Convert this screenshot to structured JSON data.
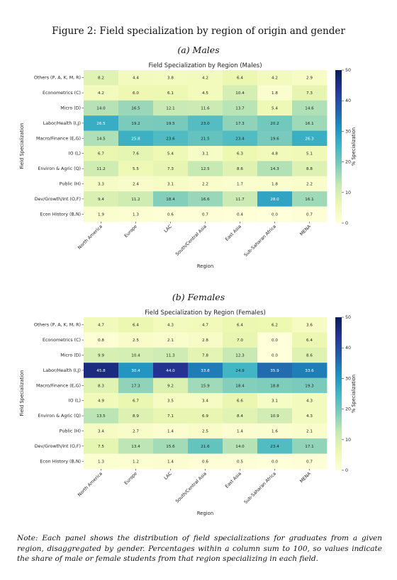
{
  "figure": {
    "title": "Figure 2: Field specialization by region of origin and gender",
    "note": "Note: Each panel shows the distribution of field specializations for graduates from a given region, disaggregated by gender. Percentages within a column sum to 100, so values indicate the share of male or female students from that region specializing in each field."
  },
  "panels": [
    {
      "label": "(a) Males"
    },
    {
      "label": "(b) Females"
    }
  ],
  "chart_data": [
    {
      "type": "heatmap",
      "title": "Field Specialization by Region (Males)",
      "xlabel": "Region",
      "ylabel": "Field Specialization",
      "colorbar_label": "% Specialization",
      "colorbar_ticks": [
        0,
        10,
        20,
        30,
        40,
        50
      ],
      "vmin": 0,
      "vmax": 50,
      "colormap": "YlGnBu",
      "categories": [
        "North America",
        "Europe",
        "LAC",
        "South/Central Asia",
        "East Asia",
        "Sub-Saharan Africa",
        "MENA"
      ],
      "rows": [
        "Others (P, A, K, M, R)",
        "Econometrics (C)",
        "Micro (D)",
        "Labor/Health (I,J)",
        "Macro/Finance (E,G)",
        "IO (L)",
        "Environ & Agric (Q)",
        "Public (H)",
        "Dev/Growth/Int (O,F)",
        "Econ History (B,N)"
      ],
      "values": [
        [
          8.2,
          4.4,
          3.8,
          4.2,
          6.4,
          4.2,
          2.9
        ],
        [
          4.2,
          6.0,
          6.1,
          4.5,
          10.4,
          1.8,
          7.3
        ],
        [
          14.0,
          16.5,
          12.1,
          11.6,
          13.7,
          5.4,
          14.6
        ],
        [
          26.5,
          19.2,
          19.5,
          23.0,
          17.3,
          20.2,
          16.1
        ],
        [
          14.5,
          25.8,
          23.6,
          21.5,
          23.4,
          19.6,
          26.3
        ],
        [
          6.7,
          7.6,
          5.4,
          3.1,
          6.3,
          4.8,
          5.1
        ],
        [
          11.2,
          5.5,
          7.3,
          12.5,
          8.6,
          14.3,
          8.8
        ],
        [
          3.3,
          2.4,
          3.1,
          2.2,
          1.7,
          1.8,
          2.2
        ],
        [
          9.4,
          11.2,
          18.4,
          16.6,
          11.7,
          28.0,
          16.1
        ],
        [
          1.9,
          1.3,
          0.6,
          0.7,
          0.4,
          0.0,
          0.7
        ]
      ]
    },
    {
      "type": "heatmap",
      "title": "Field Specialization by Region (Females)",
      "xlabel": "Region",
      "ylabel": "Field Specialization",
      "colorbar_label": "% Specialization",
      "colorbar_ticks": [
        0,
        10,
        20,
        30,
        40,
        50
      ],
      "vmin": 0,
      "vmax": 50,
      "colormap": "YlGnBu",
      "categories": [
        "North America",
        "Europe",
        "LAC",
        "South/Central Asia",
        "East Asia",
        "Sub-Saharan Africa",
        "MENA"
      ],
      "rows": [
        "Others (P, A, K, M, R)",
        "Econometrics (C)",
        "Micro (D)",
        "Labor/Health (I,J)",
        "Macro/Finance (E,G)",
        "IO (L)",
        "Environ & Agric (Q)",
        "Public (H)",
        "Dev/Growth/Int (O,F)",
        "Econ History (B,N)"
      ],
      "values": [
        [
          4.7,
          6.4,
          4.3,
          4.7,
          6.4,
          6.2,
          3.6
        ],
        [
          0.8,
          2.5,
          2.1,
          2.8,
          7.0,
          0.0,
          6.4
        ],
        [
          9.9,
          10.4,
          11.3,
          7.8,
          12.3,
          0.0,
          8.6
        ],
        [
          45.8,
          30.4,
          44.0,
          33.8,
          24.9,
          35.9,
          33.6
        ],
        [
          8.3,
          17.3,
          9.2,
          15.9,
          18.4,
          18.8,
          19.3
        ],
        [
          4.9,
          6.7,
          3.5,
          3.4,
          6.6,
          3.1,
          4.3
        ],
        [
          13.5,
          8.9,
          7.1,
          6.9,
          8.4,
          10.9,
          4.3
        ],
        [
          3.4,
          2.7,
          1.4,
          2.5,
          1.4,
          1.6,
          2.1
        ],
        [
          7.5,
          13.4,
          15.6,
          21.6,
          14.0,
          23.4,
          17.1
        ],
        [
          1.3,
          1.2,
          1.4,
          0.6,
          0.5,
          0.0,
          0.7
        ]
      ]
    }
  ]
}
